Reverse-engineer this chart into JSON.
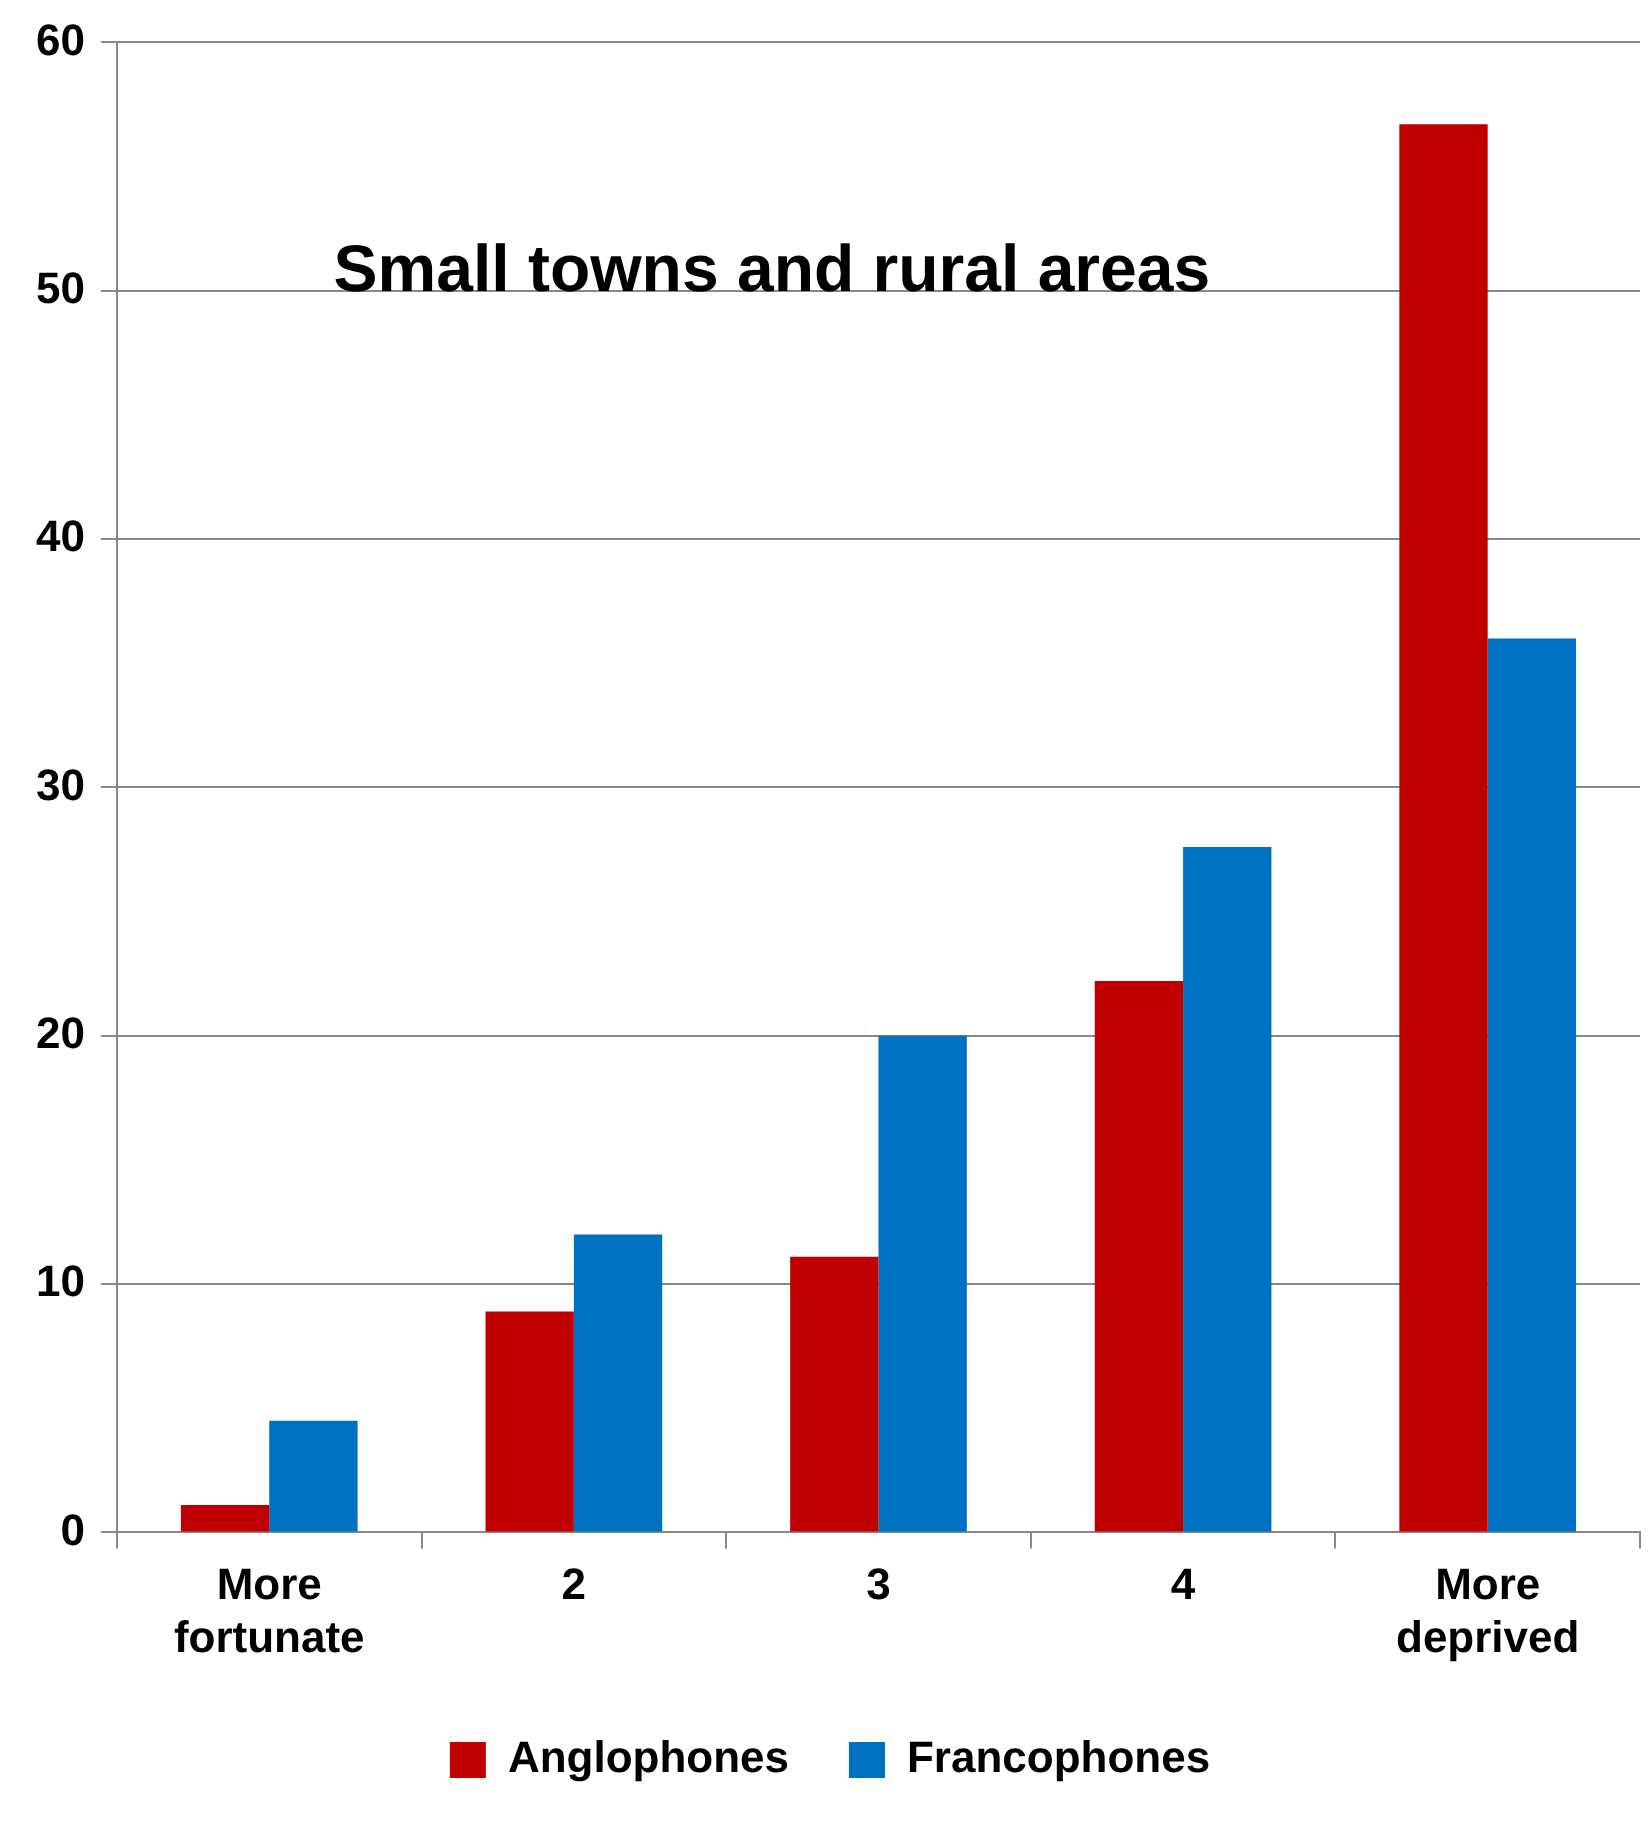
{
  "chart_data": {
    "type": "bar",
    "title": "Small towns and rural areas",
    "categories": [
      "More fortunate",
      "2",
      "3",
      "4",
      "More deprived"
    ],
    "series": [
      {
        "name": "Anglophones",
        "color": "#c00000",
        "values": [
          1.1,
          8.9,
          11.1,
          22.2,
          56.7
        ]
      },
      {
        "name": "Francophones",
        "color": "#0070c0",
        "values": [
          4.5,
          12.0,
          20.0,
          27.6,
          36.0
        ]
      }
    ],
    "ylim": [
      0,
      60
    ],
    "yticks": [
      0,
      10,
      20,
      30,
      40,
      50,
      60
    ],
    "grid": "y",
    "legend": "bottom"
  }
}
